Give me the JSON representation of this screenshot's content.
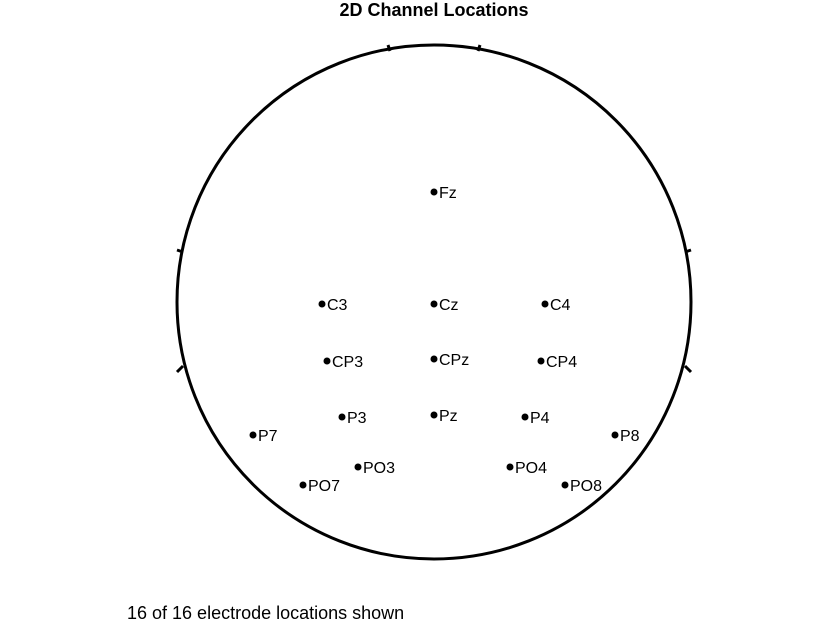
{
  "title": "2D Channel Locations",
  "status": "16 of 16 electrode locations shown",
  "colors": {
    "outline": "#000000",
    "electrode": "#000000",
    "background": "#ffffff"
  },
  "electrodes": [
    {
      "label": "Fz"
    },
    {
      "label": "C3"
    },
    {
      "label": "Cz"
    },
    {
      "label": "C4"
    },
    {
      "label": "CP3"
    },
    {
      "label": "CPz"
    },
    {
      "label": "CP4"
    },
    {
      "label": "P7"
    },
    {
      "label": "P3"
    },
    {
      "label": "Pz"
    },
    {
      "label": "P4"
    },
    {
      "label": "P8"
    },
    {
      "label": "PO7"
    },
    {
      "label": "PO3"
    },
    {
      "label": "PO4"
    },
    {
      "label": "PO8"
    }
  ]
}
